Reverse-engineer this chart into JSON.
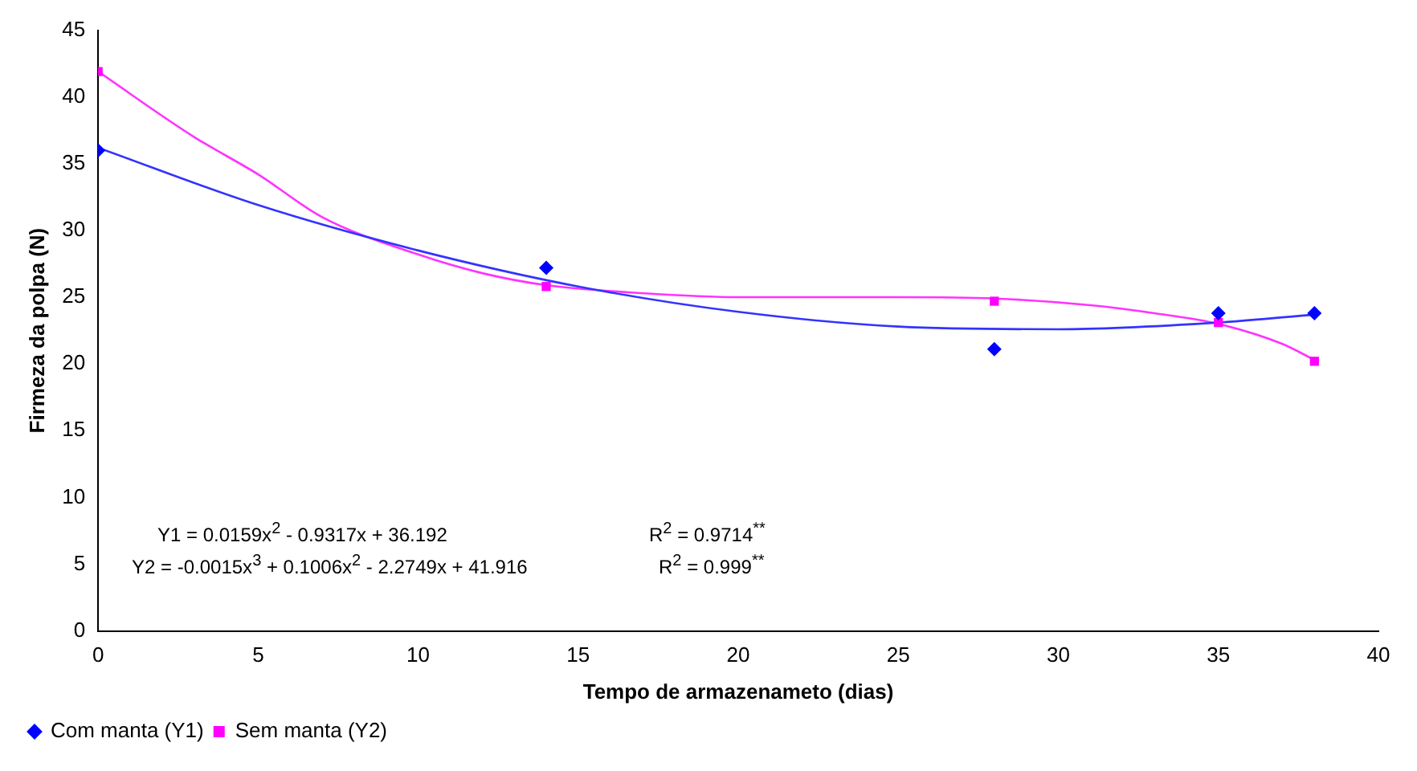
{
  "chart_data": {
    "type": "scatter",
    "xlabel": "Tempo de armazenameto (dias)",
    "ylabel": "Firmeza da polpa (N)",
    "xlim": [
      0,
      40
    ],
    "xticks": [
      0,
      5,
      10,
      15,
      20,
      25,
      30,
      35,
      40
    ],
    "ylim": [
      0,
      45
    ],
    "yticks": [
      0,
      5,
      10,
      15,
      20,
      25,
      30,
      35,
      40,
      45
    ],
    "grid": false,
    "legend": "bottom left",
    "annotations": [
      "Y1 = 0.0159x$^{2}$ - 0.9317x + 36.192",
      "R$^{2}$ = 0.9714$^{**}$",
      "Y2 = -0.0015x$^{3}$ + 0.1006x$^{2}$ - 2.2749x + 41.916",
      "R$^{2}$ = 0.999$^{**}$"
    ],
    "series": [
      {
        "name": "Com manta (Y1)",
        "marker": "diamond",
        "color": "#0000ff",
        "x": [
          0,
          14,
          28,
          35,
          38
        ],
        "values": [
          36.0,
          27.2,
          21.1,
          23.8,
          23.8
        ]
      },
      {
        "name": "Sem manta (Y2)",
        "marker": "square",
        "color": "#ff00ff",
        "x": [
          0,
          14,
          28,
          35,
          38
        ],
        "values": [
          41.9,
          25.8,
          24.7,
          23.1,
          20.2
        ]
      },
      {
        "type": "line",
        "marker": "none",
        "color": "#3333ff",
        "x": [
          0,
          5,
          10,
          15,
          20,
          25,
          30,
          35,
          38
        ],
        "values": [
          36.2,
          31.9,
          28.5,
          25.8,
          23.9,
          22.8,
          22.6,
          23.1,
          23.7
        ]
      },
      {
        "type": "line",
        "marker": "none",
        "color": "#ff33ff",
        "x": [
          0,
          3,
          5,
          7,
          10,
          12,
          14,
          17,
          20,
          25,
          28,
          31,
          33,
          35,
          37,
          38
        ],
        "values": [
          41.9,
          37.0,
          34.2,
          31.0,
          28.2,
          26.8,
          25.9,
          25.3,
          25.0,
          25.0,
          24.9,
          24.4,
          23.8,
          23.0,
          21.5,
          20.3
        ]
      }
    ]
  }
}
